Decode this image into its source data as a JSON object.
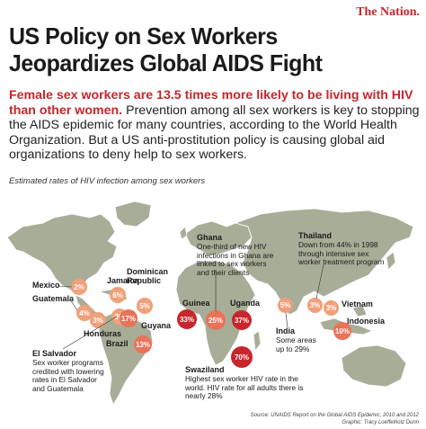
{
  "brand": "The Nation.",
  "title_line1": "US Policy on Sex Workers",
  "title_line2": "Jeopardizes Global AIDS Fight",
  "intro": {
    "lead": "Female sex workers are 13.5 times more likely to be living with HIV than other women.",
    "body": " Prevention among all sex workers is key to stopping the AIDS epidemic for many countries, according to the World Health Organization. But a US anti-prostitution policy is causing global aid organizations to deny help to sex workers."
  },
  "subtitle": "Estimated rates of HIV infection among sex workers",
  "countries": [
    {
      "name": "Mexico",
      "rate": "2%"
    },
    {
      "name": "Guatemala",
      "rate": "4%"
    },
    {
      "name": "Jamaica",
      "rate": "6%"
    },
    {
      "name": "Dominican Republic",
      "rate": "5%"
    },
    {
      "name": "Honduras",
      "rate": "3%"
    },
    {
      "name": "Guyana",
      "rate": "17%"
    },
    {
      "name": "El Salvador",
      "rate": "3%"
    },
    {
      "name": "Brazil",
      "rate": "13%"
    },
    {
      "name": "Guinea",
      "rate": "33%"
    },
    {
      "name": "Ghana",
      "rate": "25%"
    },
    {
      "name": "Uganda",
      "rate": "37%"
    },
    {
      "name": "Swaziland",
      "rate": "70%"
    },
    {
      "name": "India",
      "rate": "5%"
    },
    {
      "name": "Thailand",
      "rate": "3%"
    },
    {
      "name": "Vietnam",
      "rate": "3%"
    },
    {
      "name": "Indonesia",
      "rate": "10%"
    }
  ],
  "notes": {
    "el_salvador": "Sex worker programs credited with lowering rates in El Salvador and Guatemala",
    "ghana": "One-third of new HIV infections in Ghana are linked to sex workers and their clients",
    "swaziland": "Highest sex worker HIV rate in the world. HIV rate for all adults there is nearly 28%",
    "india": "Some areas up to 29%",
    "thailand": "Down from 44% in 1998 through intensive sex worker treatment program"
  },
  "source_line1": "Source: UNAIDS Report on the Global AIDS Epidemic, 2010 and 2012",
  "source_line2": "Graphic: Tracy Loeffelholz Dunn",
  "colors": {
    "land": "#a8ad97",
    "ocean": "#ffffff",
    "low": "#f0a07a",
    "mid": "#e8735a",
    "high": "#c8262c",
    "accent": "#c8262c"
  }
}
